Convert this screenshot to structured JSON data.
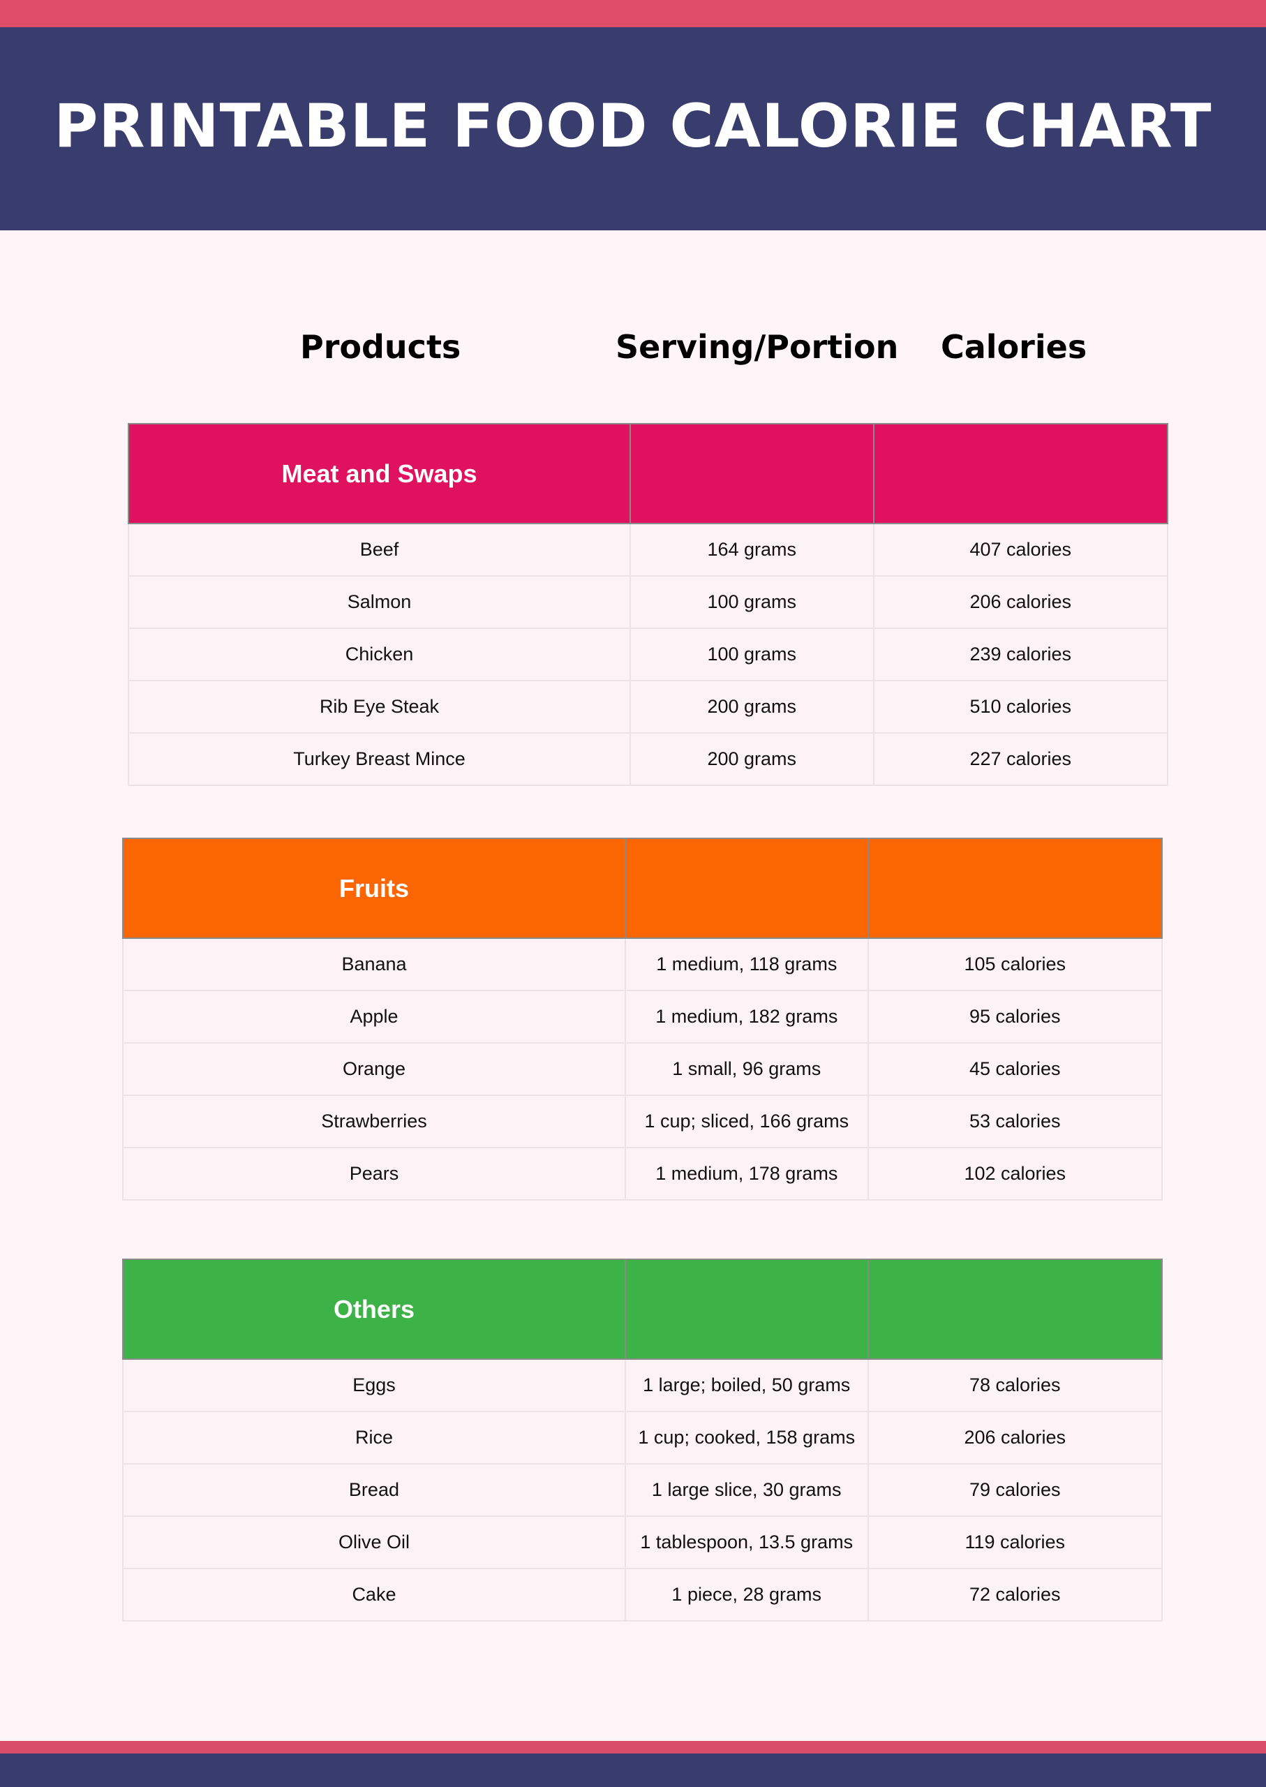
{
  "title": "PRINTABLE FOOD CALORIE CHART",
  "columns": {
    "products": "Products",
    "serving": "Serving/Portion",
    "calories": "Calories"
  },
  "colors": {
    "top_bar": "#dd4d6a",
    "header": "#383d6e",
    "background": "#fff4f7"
  },
  "sections": [
    {
      "name": "Meat and Swaps",
      "color": "#e0125f",
      "rows": [
        {
          "product": "Beef",
          "serving": "164 grams",
          "calories": "407 calories"
        },
        {
          "product": "Salmon",
          "serving": "100 grams",
          "calories": "206 calories"
        },
        {
          "product": "Chicken",
          "serving": "100 grams",
          "calories": "239 calories"
        },
        {
          "product": "Rib Eye Steak",
          "serving": "200 grams",
          "calories": "510 calories"
        },
        {
          "product": "Turkey Breast Mince",
          "serving": "200 grams",
          "calories": "227 calories"
        }
      ]
    },
    {
      "name": "Fruits",
      "color": "#fb6603",
      "rows": [
        {
          "product": "Banana",
          "serving": "1 medium, 118 grams",
          "calories": "105 calories"
        },
        {
          "product": "Apple",
          "serving": "1 medium, 182 grams",
          "calories": "95 calories"
        },
        {
          "product": "Orange",
          "serving": "1 small, 96 grams",
          "calories": "45 calories"
        },
        {
          "product": "Strawberries",
          "serving": "1 cup; sliced, 166 grams",
          "calories": "53 calories"
        },
        {
          "product": "Pears",
          "serving": "1 medium, 178 grams",
          "calories": "102 calories"
        }
      ]
    },
    {
      "name": "Others",
      "color": "#3db246",
      "rows": [
        {
          "product": "Eggs",
          "serving": "1 large; boiled, 50 grams",
          "calories": "78 calories"
        },
        {
          "product": "Rice",
          "serving": "1 cup; cooked, 158 grams",
          "calories": "206 calories"
        },
        {
          "product": "Bread",
          "serving": "1 large slice, 30 grams",
          "calories": "79 calories"
        },
        {
          "product": "Olive Oil",
          "serving": "1 tablespoon, 13.5 grams",
          "calories": "119 calories"
        },
        {
          "product": "Cake",
          "serving": "1 piece, 28 grams",
          "calories": "72 calories"
        }
      ]
    }
  ]
}
